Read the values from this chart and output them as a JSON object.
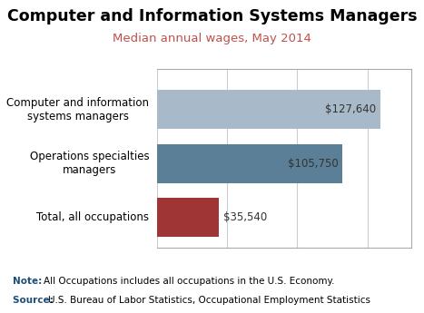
{
  "title": "Computer and Information Systems Managers",
  "subtitle": "Median annual wages, May 2014",
  "categories": [
    "Computer and information\nsystems managers",
    "Operations specialties\nmanagers",
    "Total, all occupations"
  ],
  "values": [
    127640,
    105750,
    35540
  ],
  "labels": [
    "$127,640",
    "$105,750",
    "$35,540"
  ],
  "bar_colors": [
    "#a8baca",
    "#5b7f97",
    "#a03535"
  ],
  "xlim": [
    0,
    145000
  ],
  "note_prefix": "Note: ",
  "note_body": "All Occupations includes all occupations in the U.S. Economy.",
  "source_prefix": "Source: ",
  "source_body": "U.S. Bureau of Labor Statistics, Occupational Employment Statistics",
  "note_color": "#1f4e79",
  "title_fontsize": 12.5,
  "subtitle_fontsize": 9.5,
  "subtitle_color": "#c0504d",
  "label_fontsize": 8.5,
  "ytick_fontsize": 8.5,
  "note_fontsize": 7.5,
  "background_color": "#ffffff",
  "grid_color": "#cccccc",
  "border_color": "#aaaaaa"
}
